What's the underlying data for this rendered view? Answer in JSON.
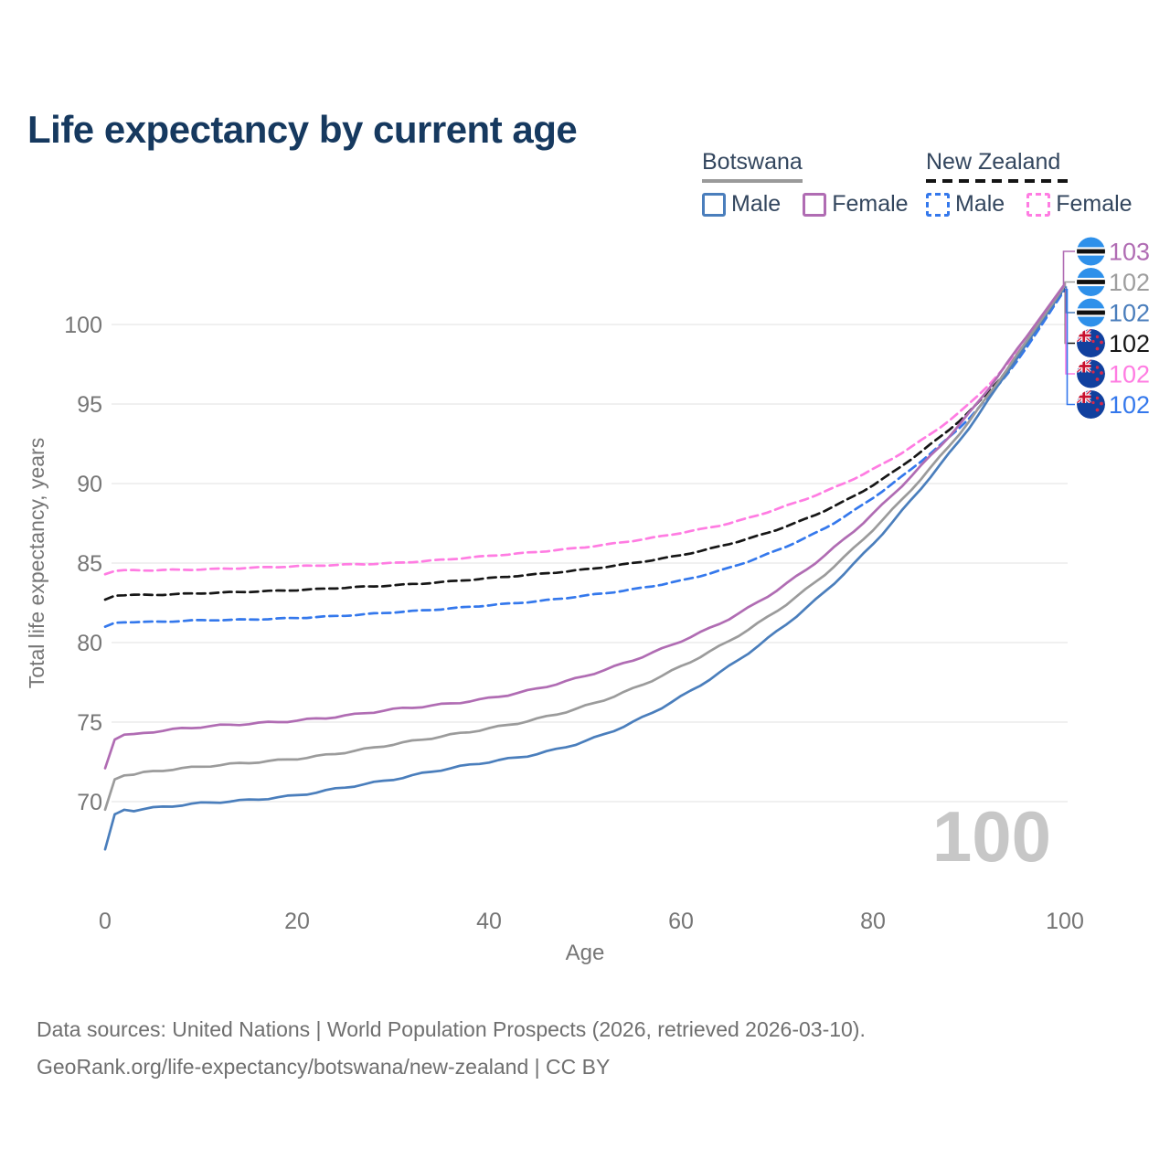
{
  "title": "Life expectancy by current age",
  "watermark": "100",
  "legend": {
    "botswana": {
      "name": "Botswana",
      "male_label": "Male",
      "female_label": "Female"
    },
    "new_zealand": {
      "name": "New Zealand",
      "male_label": "Male",
      "female_label": "Female"
    }
  },
  "colors": {
    "bw_male": "#4a7ebc",
    "bw_total": "#9b9b9b",
    "bw_female": "#b06cb3",
    "nz_male": "#3478ec",
    "nz_total": "#161616",
    "nz_female": "#ff7ce2",
    "grid": "#ececec",
    "axis_text": "#767676",
    "title_text": "#16395f",
    "legend_text": "#33465e",
    "watermark": "#c7c7c7",
    "footer_text": "#6f6f6f",
    "bw_underline": "#9a9a9a",
    "nz_underline": "#141414",
    "end_label_gray": "#9e9e9e",
    "flag_botswana_blue": "#2e90ea",
    "flag_botswana_black": "#101010",
    "flag_nz_blue": "#11409e",
    "flag_nz_red": "#c8102e"
  },
  "axes": {
    "x": {
      "label": "Age",
      "ticks": [
        0,
        20,
        40,
        60,
        80,
        100
      ]
    },
    "y": {
      "label": "Total life expectancy, years",
      "ticks": [
        70,
        75,
        80,
        85,
        90,
        95,
        100
      ]
    }
  },
  "end_labels": [
    {
      "label": "103",
      "series": "bw_female",
      "flag": "botswana"
    },
    {
      "label": "102",
      "series": "bw_total",
      "flag": "botswana",
      "color_override": "#9e9e9e"
    },
    {
      "label": "102",
      "series": "bw_male",
      "flag": "botswana"
    },
    {
      "label": "102",
      "series": "nz_total",
      "flag": "new_zealand"
    },
    {
      "label": "102",
      "series": "nz_female",
      "flag": "new_zealand"
    },
    {
      "label": "102",
      "series": "nz_male",
      "flag": "new_zealand"
    }
  ],
  "footer": {
    "line1": "Data sources: United Nations | World Population Prospects (2026, retrieved 2026-03-10).",
    "line2": "GeoRank.org/life-expectancy/botswana/new-zealand | CC BY"
  },
  "chart_data": {
    "type": "line",
    "title": "Life expectancy by current age",
    "xlabel": "Age",
    "ylabel": "Total life expectancy, years",
    "xlim": [
      0,
      100
    ],
    "ylim_shown": [
      70,
      100
    ],
    "grid": "horizontal",
    "series": [
      {
        "id": "nz_female",
        "name": "New Zealand Female",
        "style": "dashed",
        "color": "#ff7ce2",
        "points": [
          [
            0,
            84.3
          ],
          [
            1,
            84.5
          ],
          [
            5,
            84.55
          ],
          [
            10,
            84.6
          ],
          [
            15,
            84.7
          ],
          [
            20,
            84.8
          ],
          [
            25,
            84.9
          ],
          [
            30,
            85.0
          ],
          [
            35,
            85.2
          ],
          [
            40,
            85.45
          ],
          [
            45,
            85.7
          ],
          [
            50,
            86.0
          ],
          [
            55,
            86.4
          ],
          [
            60,
            86.9
          ],
          [
            65,
            87.5
          ],
          [
            70,
            88.4
          ],
          [
            75,
            89.5
          ],
          [
            80,
            90.9
          ],
          [
            85,
            92.7
          ],
          [
            90,
            95.0
          ],
          [
            95,
            98.2
          ],
          [
            100,
            102.27
          ]
        ]
      },
      {
        "id": "nz_total",
        "name": "New Zealand",
        "style": "dashed",
        "color": "#161616",
        "points": [
          [
            0,
            82.7
          ],
          [
            1,
            82.95
          ],
          [
            5,
            83.0
          ],
          [
            10,
            83.1
          ],
          [
            15,
            83.2
          ],
          [
            20,
            83.3
          ],
          [
            25,
            83.45
          ],
          [
            30,
            83.6
          ],
          [
            35,
            83.8
          ],
          [
            40,
            84.05
          ],
          [
            45,
            84.3
          ],
          [
            50,
            84.6
          ],
          [
            55,
            85.0
          ],
          [
            60,
            85.5
          ],
          [
            65,
            86.2
          ],
          [
            70,
            87.1
          ],
          [
            75,
            88.3
          ],
          [
            80,
            89.9
          ],
          [
            85,
            92.0
          ],
          [
            90,
            94.5
          ],
          [
            95,
            97.9
          ],
          [
            100,
            102.3
          ]
        ]
      },
      {
        "id": "nz_male",
        "name": "New Zealand Male",
        "style": "dashed",
        "color": "#3478ec",
        "points": [
          [
            0,
            81.0
          ],
          [
            1,
            81.25
          ],
          [
            5,
            81.3
          ],
          [
            10,
            81.4
          ],
          [
            15,
            81.45
          ],
          [
            20,
            81.55
          ],
          [
            25,
            81.7
          ],
          [
            30,
            81.9
          ],
          [
            35,
            82.1
          ],
          [
            40,
            82.35
          ],
          [
            45,
            82.6
          ],
          [
            50,
            82.95
          ],
          [
            55,
            83.35
          ],
          [
            60,
            83.9
          ],
          [
            65,
            84.7
          ],
          [
            70,
            85.8
          ],
          [
            75,
            87.2
          ],
          [
            80,
            89.1
          ],
          [
            85,
            91.4
          ],
          [
            90,
            94.1
          ],
          [
            95,
            97.7
          ],
          [
            100,
            102.2
          ]
        ]
      },
      {
        "id": "bw_male",
        "name": "Botswana Male",
        "style": "solid",
        "color": "#4a7ebc",
        "points": [
          [
            0,
            67.0
          ],
          [
            1,
            69.2
          ],
          [
            3,
            69.45
          ],
          [
            5,
            69.6
          ],
          [
            10,
            69.9
          ],
          [
            15,
            70.1
          ],
          [
            20,
            70.4
          ],
          [
            25,
            70.9
          ],
          [
            30,
            71.4
          ],
          [
            35,
            72.0
          ],
          [
            40,
            72.5
          ],
          [
            45,
            73.0
          ],
          [
            50,
            73.8
          ],
          [
            55,
            75.0
          ],
          [
            60,
            76.6
          ],
          [
            65,
            78.5
          ],
          [
            70,
            80.7
          ],
          [
            75,
            83.2
          ],
          [
            80,
            86.2
          ],
          [
            85,
            89.7
          ],
          [
            90,
            93.5
          ],
          [
            95,
            97.9
          ],
          [
            100,
            102.35
          ]
        ]
      },
      {
        "id": "bw_total",
        "name": "Botswana",
        "style": "solid",
        "color": "#9b9b9b",
        "points": [
          [
            0,
            69.5
          ],
          [
            1,
            71.4
          ],
          [
            3,
            71.7
          ],
          [
            5,
            71.9
          ],
          [
            10,
            72.2
          ],
          [
            15,
            72.45
          ],
          [
            20,
            72.7
          ],
          [
            25,
            73.1
          ],
          [
            30,
            73.6
          ],
          [
            35,
            74.1
          ],
          [
            40,
            74.6
          ],
          [
            45,
            75.2
          ],
          [
            50,
            76.0
          ],
          [
            55,
            77.1
          ],
          [
            60,
            78.5
          ],
          [
            65,
            80.1
          ],
          [
            70,
            82.0
          ],
          [
            75,
            84.3
          ],
          [
            80,
            87.1
          ],
          [
            85,
            90.3
          ],
          [
            90,
            93.9
          ],
          [
            95,
            98.1
          ],
          [
            100,
            102.45
          ]
        ]
      },
      {
        "id": "bw_female",
        "name": "Botswana Female",
        "style": "solid",
        "color": "#b06cb3",
        "points": [
          [
            0,
            72.1
          ],
          [
            1,
            73.9
          ],
          [
            3,
            74.2
          ],
          [
            5,
            74.4
          ],
          [
            10,
            74.7
          ],
          [
            15,
            74.9
          ],
          [
            20,
            75.1
          ],
          [
            25,
            75.4
          ],
          [
            30,
            75.8
          ],
          [
            35,
            76.1
          ],
          [
            40,
            76.5
          ],
          [
            45,
            77.1
          ],
          [
            50,
            77.9
          ],
          [
            55,
            78.9
          ],
          [
            60,
            80.1
          ],
          [
            65,
            81.5
          ],
          [
            70,
            83.3
          ],
          [
            75,
            85.5
          ],
          [
            80,
            88.1
          ],
          [
            85,
            91.1
          ],
          [
            90,
            94.4
          ],
          [
            95,
            98.4
          ],
          [
            100,
            102.55
          ]
        ]
      }
    ]
  }
}
